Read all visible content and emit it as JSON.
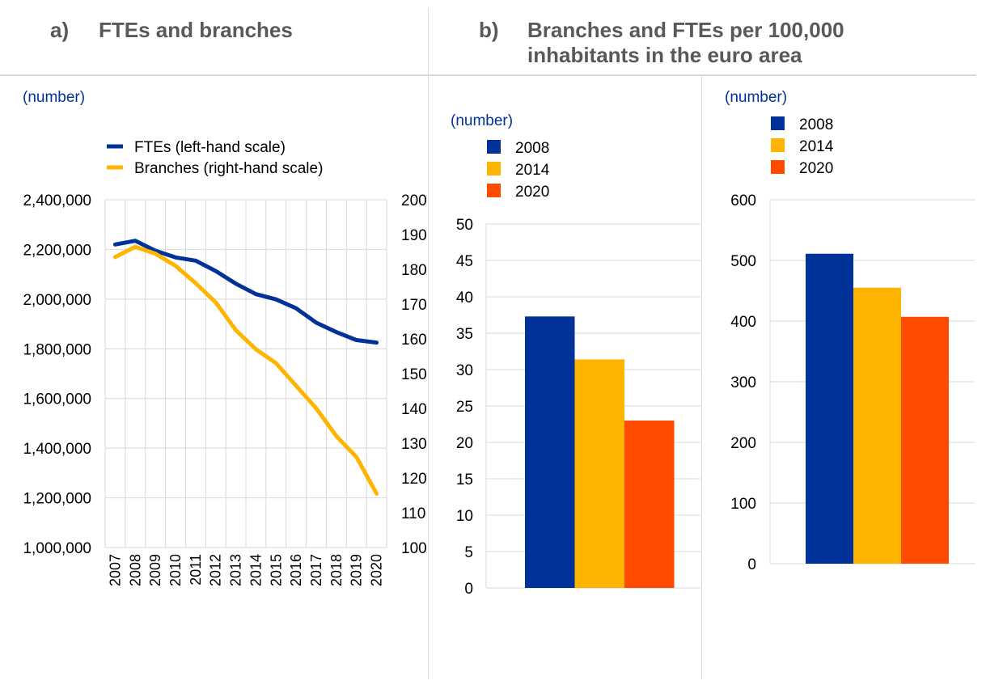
{
  "panel_a": {
    "letter": "a)",
    "title": "FTEs and branches",
    "unit": "(number)"
  },
  "panel_b": {
    "letter": "b)",
    "title_line1": "Branches and FTEs per 100,000",
    "title_line2": "inhabitants in the euro area",
    "unit_left": "(number)",
    "unit_right": "(number)"
  },
  "colors": {
    "fte_line": "#003299",
    "branches_line": "#ffb400",
    "y2008": "#003299",
    "y2014": "#ffb400",
    "y2020": "#ff4b00",
    "grid": "#d9d9d9",
    "title": "#595959",
    "unit": "#003299"
  },
  "chart_data": [
    {
      "type": "line",
      "x": [
        "2007",
        "2008",
        "2009",
        "2010",
        "2011",
        "2012",
        "2013",
        "2014",
        "2015",
        "2016",
        "2017",
        "2018",
        "2019",
        "2020"
      ],
      "series": [
        {
          "name": "FTEs (left-hand scale)",
          "axis": "left",
          "values": [
            2220000,
            2235000,
            2195000,
            2168000,
            2155000,
            2113000,
            2062000,
            2020000,
            1999000,
            1963000,
            1905000,
            1867000,
            1835000,
            1825000
          ]
        },
        {
          "name": "Branches (right-hand scale)",
          "axis": "right",
          "values": [
            183500,
            186500,
            184500,
            181000,
            176000,
            170500,
            162500,
            157000,
            153000,
            146500,
            140000,
            132000,
            126000,
            115500
          ]
        }
      ],
      "y_left_ticks": [
        "2,400,000",
        "2,200,000",
        "2,000,000",
        "1,800,000",
        "1,600,000",
        "1,400,000",
        "1,200,000",
        "1,000,000"
      ],
      "y_left_lim": [
        1000000,
        2400000
      ],
      "y_right_ticks": [
        "200",
        "190",
        "180",
        "170",
        "160",
        "150",
        "140",
        "130",
        "120",
        "110",
        "100"
      ],
      "y_right_lim": [
        100000,
        200000
      ],
      "grid": true,
      "legend_position": "top"
    },
    {
      "type": "bar",
      "categories": [
        "2008",
        "2014",
        "2020"
      ],
      "values": [
        37.3,
        31.4,
        23.0
      ],
      "ylim": [
        0,
        50
      ],
      "y_ticks": [
        "50",
        "45",
        "40",
        "35",
        "30",
        "25",
        "20",
        "15",
        "10",
        "5",
        "0"
      ],
      "grid": true,
      "legend_position": "top-left"
    },
    {
      "type": "bar",
      "categories": [
        "2008",
        "2014",
        "2020"
      ],
      "values": [
        511,
        455,
        407
      ],
      "ylim": [
        0,
        600
      ],
      "y_ticks": [
        "600",
        "500",
        "400",
        "300",
        "200",
        "100",
        "0"
      ],
      "grid": true,
      "legend_position": "top-left"
    }
  ]
}
